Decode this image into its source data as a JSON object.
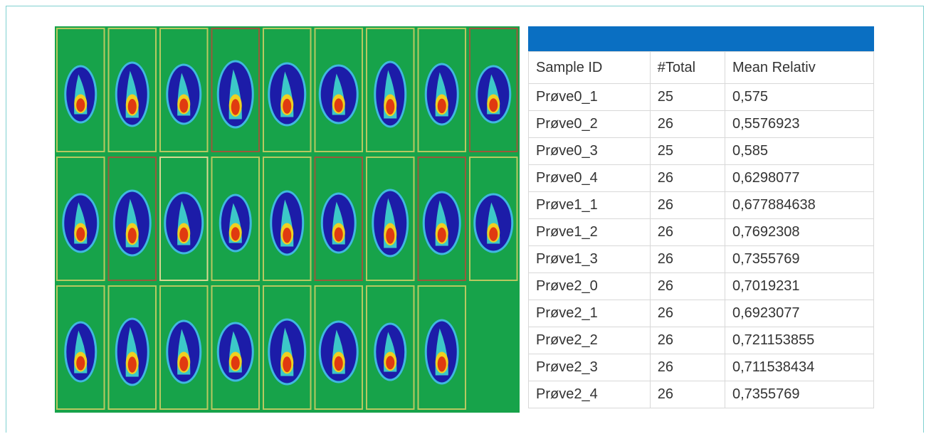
{
  "table": {
    "columns": [
      "Sample ID",
      "#Total",
      "Mean Relativ"
    ],
    "rows": [
      [
        "Prøve0_1",
        "25",
        "0,575"
      ],
      [
        "Prøve0_2",
        "26",
        "0,5576923"
      ],
      [
        "Prøve0_3",
        "25",
        "0,585"
      ],
      [
        "Prøve0_4",
        "26",
        "0,6298077"
      ],
      [
        "Prøve1_1",
        "26",
        "0,677884638"
      ],
      [
        "Prøve1_2",
        "26",
        "0,7692308"
      ],
      [
        "Prøve1_3",
        "26",
        "0,7355769"
      ],
      [
        "Prøve2_0",
        "26",
        "0,7019231"
      ],
      [
        "Prøve2_1",
        "26",
        "0,6923077"
      ],
      [
        "Prøve2_2",
        "26",
        "0,721153855"
      ],
      [
        "Prøve2_3",
        "26",
        "0,711538434"
      ],
      [
        "Prøve2_4",
        "26",
        "0,7355769"
      ]
    ]
  }
}
